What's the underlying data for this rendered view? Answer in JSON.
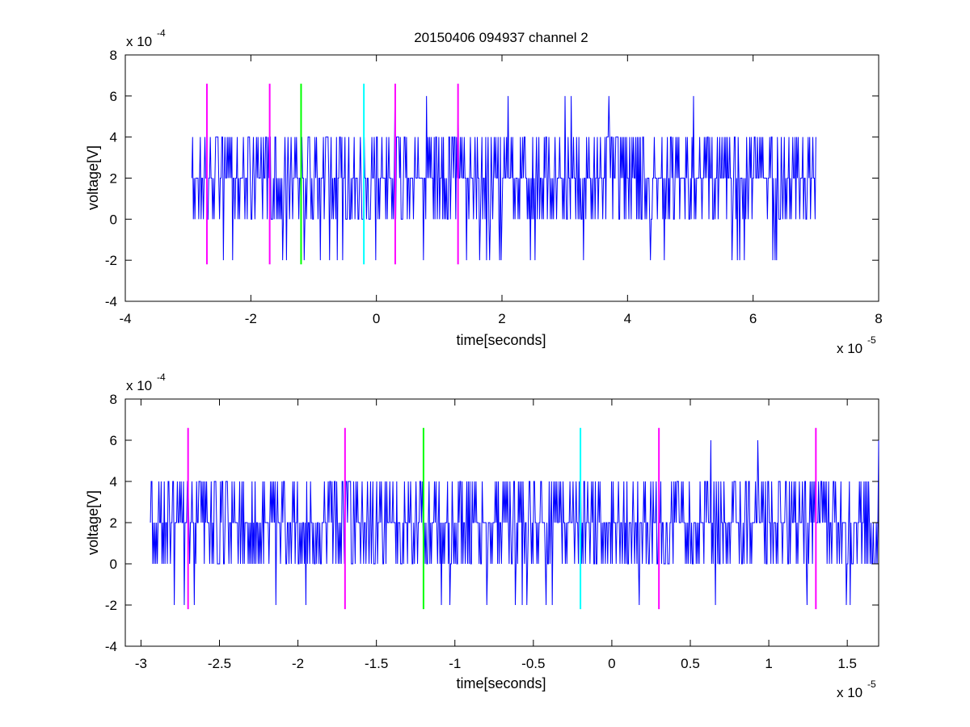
{
  "figure": {
    "title": "20150406 094937 channel 2"
  },
  "chart_data": [
    {
      "type": "line",
      "xlabel": "time[seconds]",
      "ylabel": "voltage[V]",
      "x_multiplier_label": "x 10",
      "x_multiplier_exp": "-5",
      "y_multiplier_label": "x 10",
      "y_multiplier_exp": "-4",
      "xlim": [
        -4,
        8
      ],
      "ylim": [
        -4,
        8
      ],
      "xticks": [
        -4,
        -2,
        0,
        2,
        4,
        6,
        8
      ],
      "xticklabels": [
        "-4",
        "-2",
        "0",
        "2",
        "4",
        "6",
        "8"
      ],
      "yticks": [
        -4,
        -2,
        0,
        2,
        4,
        6,
        8
      ],
      "yticklabels": [
        "-4",
        "-2",
        "0",
        "2",
        "4",
        "6",
        "8"
      ],
      "grid": false,
      "series": [
        {
          "kind": "noise-trace",
          "color": "#0000ff",
          "x_range": [
            -2.94,
            7.0
          ],
          "seed": 11,
          "levels": [
            -2,
            0,
            2,
            4,
            6
          ],
          "spikes_to_6": [
            0.3,
            0.8,
            1.3,
            2.1,
            3.0,
            3.1,
            3.7,
            5.05
          ]
        }
      ],
      "markers": [
        {
          "x": -2.7,
          "y_range": [
            -2.2,
            6.6
          ],
          "color": "#ff00ff"
        },
        {
          "x": -1.7,
          "y_range": [
            -2.2,
            6.6
          ],
          "color": "#ff00ff"
        },
        {
          "x": -1.2,
          "y_range": [
            -2.2,
            6.6
          ],
          "color": "#00ff00"
        },
        {
          "x": -0.2,
          "y_range": [
            -2.2,
            6.6
          ],
          "color": "#00ffff"
        },
        {
          "x": 0.3,
          "y_range": [
            -2.2,
            6.6
          ],
          "color": "#ff00ff"
        },
        {
          "x": 1.3,
          "y_range": [
            -2.2,
            6.6
          ],
          "color": "#ff00ff"
        }
      ]
    },
    {
      "type": "line",
      "xlabel": "time[seconds]",
      "ylabel": "voltage[V]",
      "x_multiplier_label": "x 10",
      "x_multiplier_exp": "-5",
      "y_multiplier_label": "x 10",
      "y_multiplier_exp": "-4",
      "xlim": [
        -3.1,
        1.7
      ],
      "ylim": [
        -4,
        8
      ],
      "xticks": [
        -3,
        -2.5,
        -2,
        -1.5,
        -1,
        -0.5,
        0,
        0.5,
        1,
        1.5
      ],
      "xticklabels": [
        "-3",
        "-2.5",
        "-2",
        "-1.5",
        "-1",
        "-0.5",
        "0",
        "0.5",
        "1",
        "1.5"
      ],
      "yticks": [
        -4,
        -2,
        0,
        2,
        4,
        6,
        8
      ],
      "yticklabels": [
        "-4",
        "-2",
        "0",
        "2",
        "4",
        "6",
        "8"
      ],
      "grid": false,
      "series": [
        {
          "kind": "noise-trace",
          "color": "#0000ff",
          "x_range": [
            -2.94,
            1.7
          ],
          "seed": 23,
          "levels": [
            -2,
            0,
            2,
            4,
            6
          ],
          "spikes_to_6": [
            0.63,
            0.93,
            1.7
          ]
        }
      ],
      "markers": [
        {
          "x": -2.7,
          "y_range": [
            -2.2,
            6.6
          ],
          "color": "#ff00ff"
        },
        {
          "x": -1.7,
          "y_range": [
            -2.2,
            6.6
          ],
          "color": "#ff00ff"
        },
        {
          "x": -1.2,
          "y_range": [
            -2.2,
            6.6
          ],
          "color": "#00ff00"
        },
        {
          "x": -0.2,
          "y_range": [
            -2.2,
            6.6
          ],
          "color": "#00ffff"
        },
        {
          "x": 0.3,
          "y_range": [
            -2.2,
            6.6
          ],
          "color": "#ff00ff"
        },
        {
          "x": 1.3,
          "y_range": [
            -2.2,
            6.6
          ],
          "color": "#ff00ff"
        }
      ]
    }
  ]
}
